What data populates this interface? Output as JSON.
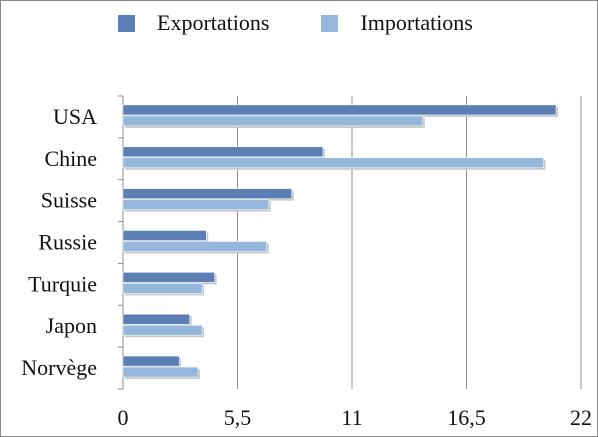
{
  "chart_data": {
    "type": "bar",
    "orientation": "horizontal",
    "categories": [
      "USA",
      "Chine",
      "Suisse",
      "Russie",
      "Turquie",
      "Japon",
      "Norvège"
    ],
    "series": [
      {
        "name": "Exportations",
        "color": "#5b7fb5",
        "values": [
          20.8,
          9.6,
          8.1,
          4.0,
          4.4,
          3.2,
          2.7
        ]
      },
      {
        "name": "Importations",
        "color": "#95b7db",
        "values": [
          14.4,
          20.2,
          7.0,
          6.9,
          3.8,
          3.8,
          3.6
        ]
      }
    ],
    "xlim": [
      0,
      22
    ],
    "xticks": [
      "0",
      "5,5",
      "11",
      "16,5",
      "22"
    ],
    "xtick_values": [
      0,
      5.5,
      11,
      16.5,
      22
    ],
    "grid": true,
    "legend_position": "top"
  }
}
